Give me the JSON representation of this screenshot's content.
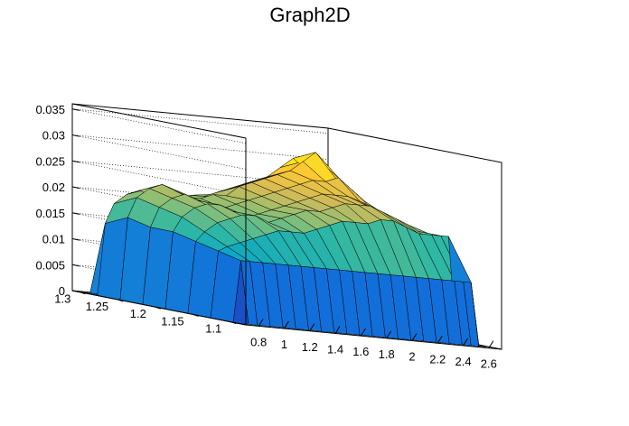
{
  "chart_data": {
    "type": "surface3d",
    "title": "Graph2D",
    "x_ticks": [
      "0.8",
      "1",
      "1.2",
      "1.4",
      "1.6",
      "1.8",
      "2",
      "2.2",
      "2.4",
      "2.6"
    ],
    "y_ticks": [
      "1.1",
      "1.15",
      "1.2",
      "1.25",
      "1.3"
    ],
    "z_ticks": [
      "0",
      "0.005",
      "0.01",
      "0.015",
      "0.02",
      "0.025",
      "0.03",
      "0.035"
    ],
    "xlim": [
      0.7,
      2.7
    ],
    "ylim": [
      1.08,
      1.31
    ],
    "zlim": [
      0,
      0.036
    ],
    "grid": true,
    "colormap": [
      "#352a87",
      "#0f5cdd",
      "#1481d6",
      "#06a4ca",
      "#2eb7a4",
      "#87bf77",
      "#d1bb59",
      "#fec832",
      "#f9fb0e"
    ],
    "edge_color": "#000000",
    "surface_rows": [
      {
        "y": 1.09,
        "values": [
          0,
          0,
          0,
          0,
          0,
          0,
          0,
          0,
          0,
          0,
          0,
          0,
          0,
          0,
          0,
          0,
          0,
          0,
          0,
          0,
          0,
          0
        ]
      },
      {
        "y": 1.1,
        "values": [
          0,
          0.012,
          0.012,
          0.012,
          0.012,
          0.012,
          0.012,
          0.012,
          0.012,
          0.012,
          0.012,
          0.012,
          0.012,
          0.012,
          0.012,
          0.012,
          0.012,
          0.012,
          0.012,
          0.012,
          0.012,
          0
        ]
      },
      {
        "y": 1.13,
        "values": [
          0,
          0.013,
          0.014,
          0.015,
          0.016,
          0.017,
          0.018,
          0.018,
          0.018,
          0.019,
          0.02,
          0.021,
          0.021,
          0.021,
          0.022,
          0.022,
          0.021,
          0.02,
          0.02,
          0.02,
          0.02,
          0
        ]
      },
      {
        "y": 1.16,
        "values": [
          0,
          0.014,
          0.016,
          0.018,
          0.019,
          0.02,
          0.02,
          0.019,
          0.02,
          0.021,
          0.022,
          0.022,
          0.023,
          0.024,
          0.024,
          0.024,
          0.023,
          0.022,
          0.021,
          0.02,
          0.019,
          0
        ]
      },
      {
        "y": 1.19,
        "values": [
          0,
          0.015,
          0.018,
          0.02,
          0.021,
          0.021,
          0.02,
          0.019,
          0.02,
          0.021,
          0.022,
          0.023,
          0.024,
          0.025,
          0.025,
          0.025,
          0.024,
          0.023,
          0.022,
          0.021,
          0.02,
          0
        ]
      },
      {
        "y": 1.22,
        "values": [
          0,
          0.015,
          0.019,
          0.021,
          0.022,
          0.021,
          0.02,
          0.02,
          0.021,
          0.022,
          0.023,
          0.024,
          0.025,
          0.026,
          0.027,
          0.027,
          0.028,
          0.026,
          0.024,
          0.022,
          0.02,
          0
        ]
      },
      {
        "y": 1.25,
        "values": [
          0,
          0.016,
          0.02,
          0.022,
          0.023,
          0.022,
          0.021,
          0.021,
          0.022,
          0.022,
          0.024,
          0.025,
          0.026,
          0.027,
          0.028,
          0.03,
          0.032,
          0.029,
          0.026,
          0.023,
          0.021,
          0
        ]
      },
      {
        "y": 1.28,
        "values": [
          0,
          0.014,
          0.018,
          0.02,
          0.021,
          0.02,
          0.02,
          0.02,
          0.021,
          0.021,
          0.022,
          0.023,
          0.024,
          0.025,
          0.026,
          0.028,
          0.03,
          0.028,
          0.025,
          0.022,
          0.02,
          0
        ]
      },
      {
        "y": 1.3,
        "values": [
          0,
          0,
          0,
          0,
          0,
          0,
          0,
          0,
          0,
          0,
          0,
          0,
          0,
          0,
          0,
          0,
          0,
          0,
          0,
          0,
          0,
          0
        ]
      }
    ],
    "surface_x": [
      0.72,
      0.78,
      0.85,
      0.95,
      1.05,
      1.15,
      1.25,
      1.35,
      1.45,
      1.55,
      1.65,
      1.75,
      1.85,
      1.95,
      2.05,
      2.15,
      2.25,
      2.35,
      2.45,
      2.52,
      2.58,
      2.64
    ]
  }
}
